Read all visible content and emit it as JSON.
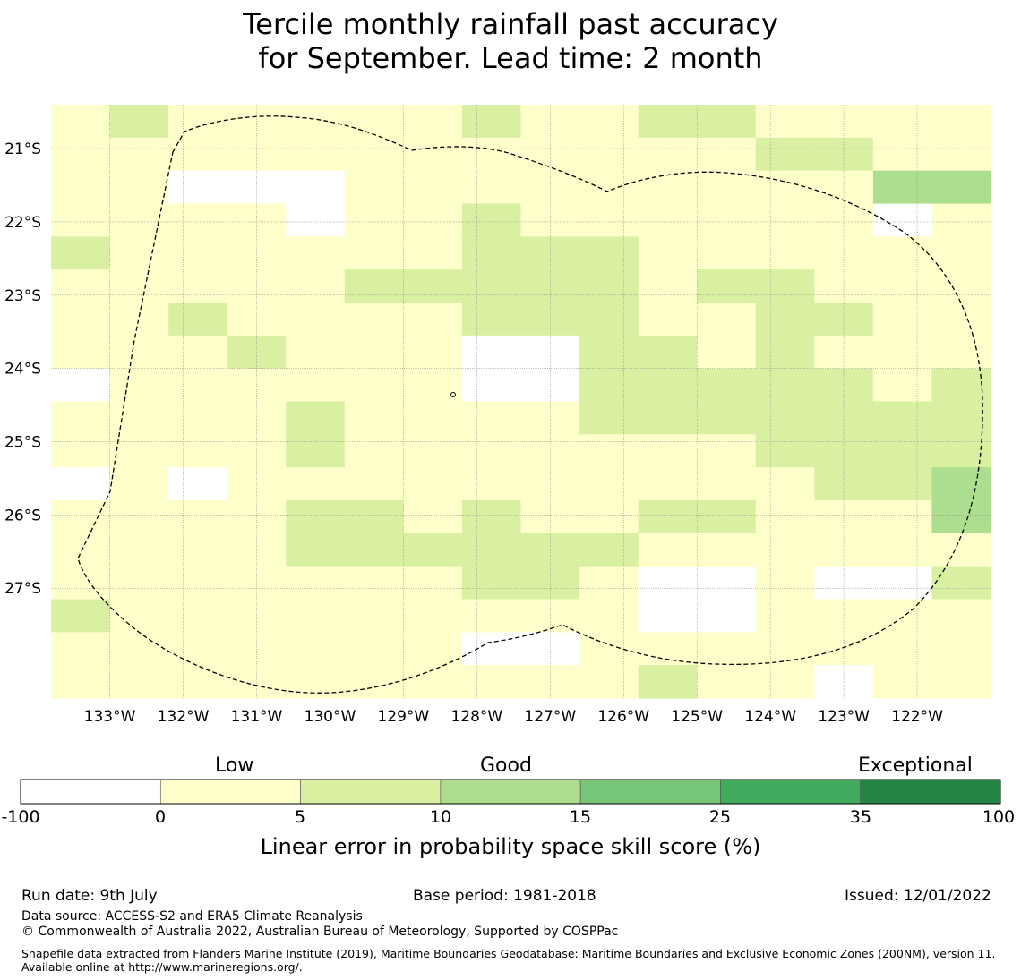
{
  "title": {
    "line1": "Tercile monthly rainfall past accuracy",
    "line2": "for September. Lead time: 2 month"
  },
  "map": {
    "lon_labels": [
      "133°W",
      "132°W",
      "131°W",
      "130°W",
      "129°W",
      "128°W",
      "127°W",
      "126°W",
      "125°W",
      "124°W",
      "123°W",
      "122°W"
    ],
    "lat_labels": [
      "21°S",
      "22°S",
      "23°S",
      "24°S",
      "25°S",
      "26°S",
      "27°S"
    ],
    "grid_lons": [
      -133,
      -132,
      -131,
      -130,
      -129,
      -128,
      -127,
      -126,
      -125,
      -124,
      -123,
      -122
    ],
    "grid_lats": [
      -21,
      -22,
      -23,
      -24,
      -25,
      -26,
      -27
    ],
    "extent": {
      "lon_min": -133.8,
      "lon_max": -121.0,
      "lat_min": -28.5,
      "lat_max": -20.4
    },
    "cell_grid": {
      "description": "rows top to bottom, columns west to east; values are skill category index into colorbar.colors",
      "rows": [
        "1211111211221111",
        "1111111111112211",
        "1100011111111133",
        "1111011211111101",
        "2111111222111111",
        "1111122222122111",
        "1121111222112211",
        "1112111002212111",
        "0111111002222212",
        "1111211112222222",
        "1111211111112222",
        "0101111111111223",
        "1111221211221113",
        "1111222222111111",
        "1111111221001002",
        "2111111111001111",
        "1111111001111111",
        "1111111111211011"
      ]
    },
    "eez_boundary": "dashed"
  },
  "colorbar": {
    "category_labels": [
      "Low",
      "Good",
      "Exceptional"
    ],
    "ticks": [
      "-100",
      "0",
      "5",
      "10",
      "15",
      "25",
      "35",
      "100"
    ],
    "colors": [
      "#ffffff",
      "#ffffcc",
      "#d9f0a3",
      "#addd8e",
      "#78c679",
      "#41ab5d",
      "#238443"
    ],
    "xlabel": "Linear error in probability space skill score (%)"
  },
  "footer": {
    "run_date": "Run date: 9th July",
    "base_period": "Base period: 1981-2018",
    "issued": "Issued: 12/01/2022",
    "data_source": "Data source: ACCESS-S2 and ERA5 Climate Reanalysis",
    "copyright": "© Commonwealth of Australia 2022, Australian Bureau of Meteorology, Supported by COSPPac",
    "shapefile": "Shapefile data extracted from Flanders Marine Institute (2019), Maritime Boundaries Geodatabase: Maritime Boundaries and Exclusive Economic Zones (200NM), version 11. Available online at http://www.marineregions.org/."
  }
}
